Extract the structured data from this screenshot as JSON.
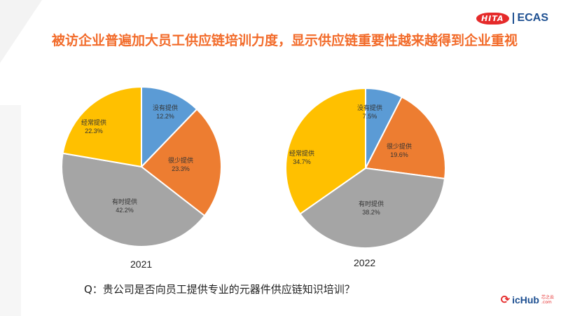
{
  "title": "被访企业普遍加大员工供应链培训力度，显示供应链重要性越来越得到企业重视",
  "logo": {
    "badge": "HITA",
    "brand": "ECAS"
  },
  "footer_logo": {
    "mark": "⟳",
    "name": "icHub",
    "sub1": "芯之云",
    "sub2": ".com"
  },
  "question": "Q：贵公司是否向员工提供专业的元器件供应链知识培训？",
  "colors": {
    "title": "#f26b2a",
    "blue": "#5b9bd5",
    "orange": "#ed7d31",
    "gray": "#a5a5a5",
    "yellow": "#ffc000"
  },
  "chart_data": [
    {
      "type": "pie",
      "title": "2021",
      "slices": [
        {
          "label": "没有提供",
          "value": 12.2,
          "display": "12.2%",
          "color": "#5b9bd5"
        },
        {
          "label": "很少提供",
          "value": 23.3,
          "display": "23.3%",
          "color": "#ed7d31"
        },
        {
          "label": "有时提供",
          "value": 42.2,
          "display": "42.2%",
          "color": "#a5a5a5"
        },
        {
          "label": "经常提供",
          "value": 22.3,
          "display": "22.3%",
          "color": "#ffc000"
        }
      ]
    },
    {
      "type": "pie",
      "title": "2022",
      "slices": [
        {
          "label": "没有提供",
          "value": 7.5,
          "display": "7.5%",
          "color": "#5b9bd5"
        },
        {
          "label": "很少提供",
          "value": 19.6,
          "display": "19.6%",
          "color": "#ed7d31"
        },
        {
          "label": "有时提供",
          "value": 38.2,
          "display": "38.2%",
          "color": "#a5a5a5"
        },
        {
          "label": "经常提供",
          "value": 34.7,
          "display": "34.7%",
          "color": "#ffc000"
        }
      ]
    }
  ]
}
